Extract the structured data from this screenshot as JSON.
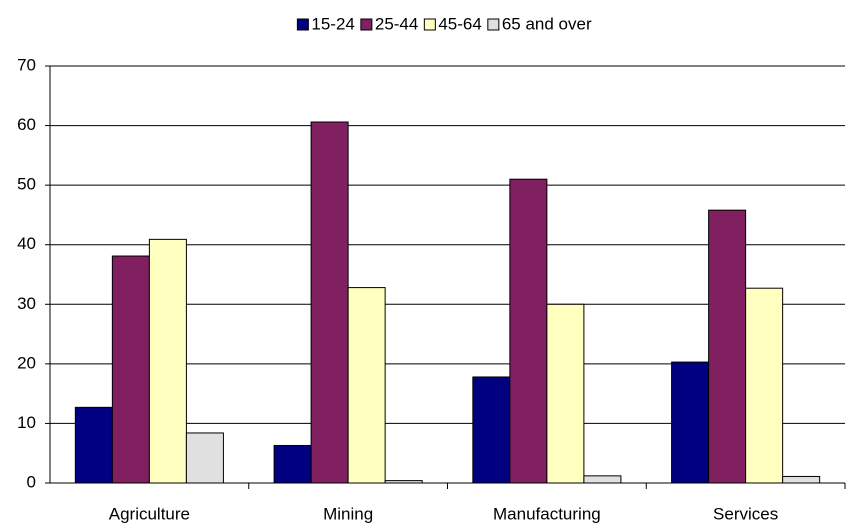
{
  "chart_data": {
    "type": "bar",
    "categories": [
      "Agriculture",
      "Mining",
      "Manufacturing",
      "Services"
    ],
    "series": [
      {
        "name": "15-24",
        "color": "#000080",
        "values": [
          12.7,
          6.3,
          17.8,
          20.3
        ]
      },
      {
        "name": "25-44",
        "color": "#802060",
        "values": [
          38.1,
          60.6,
          51.0,
          45.8
        ]
      },
      {
        "name": "45-64",
        "color": "#ffffc0",
        "values": [
          40.9,
          32.8,
          30.0,
          32.7
        ]
      },
      {
        "name": "65 and over",
        "color": "#e0e0e0",
        "values": [
          8.4,
          0.4,
          1.2,
          1.1
        ]
      }
    ],
    "ylim": [
      0,
      70
    ],
    "yticks": [
      0,
      10,
      20,
      30,
      40,
      50,
      60,
      70
    ],
    "grid": true,
    "legend": "top"
  }
}
